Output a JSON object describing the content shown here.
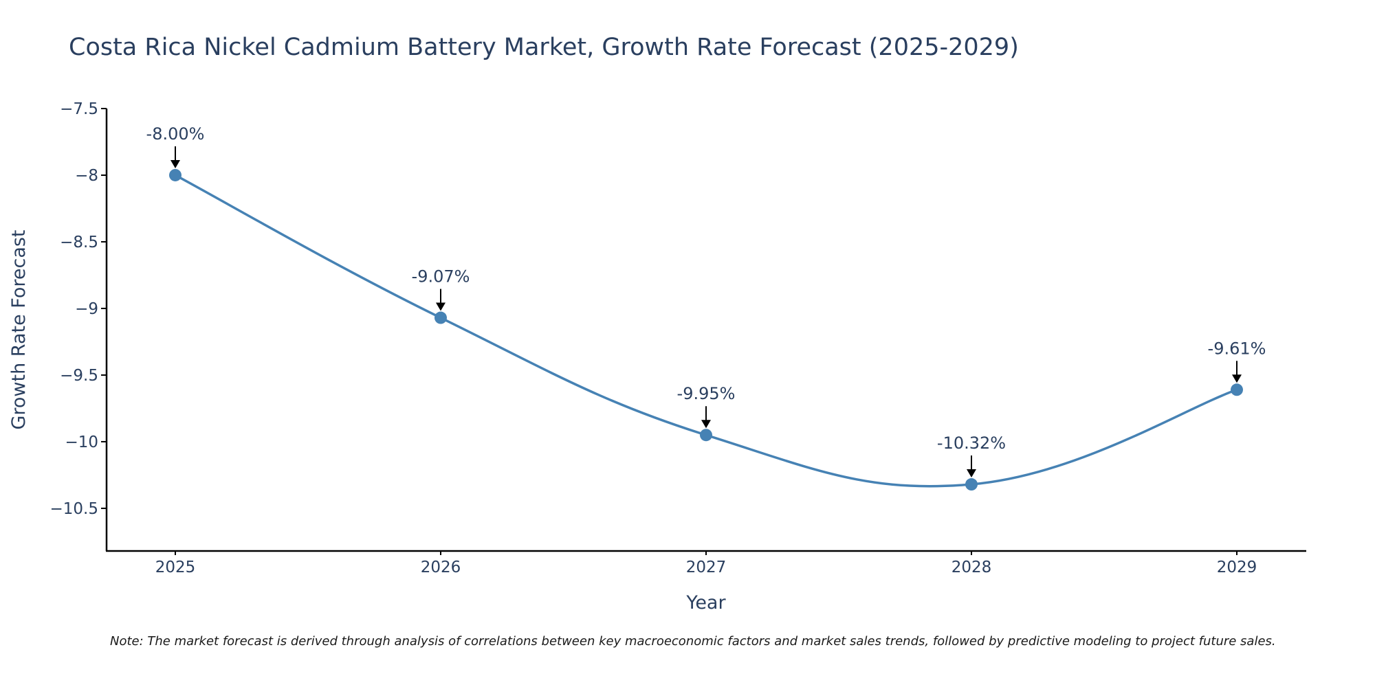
{
  "chart_data": {
    "type": "line",
    "title": "Costa Rica Nickel Cadmium Battery Market, Growth Rate Forecast (2025-2029)",
    "xlabel": "Year",
    "ylabel": "Growth Rate Forecast",
    "x": [
      "2025",
      "2026",
      "2027",
      "2028",
      "2029"
    ],
    "series": [
      {
        "name": "Growth Rate Forecast",
        "values": [
          -8.0,
          -9.07,
          -9.95,
          -10.32,
          -9.61
        ]
      }
    ],
    "annotations": [
      "-8.00%",
      "-9.07%",
      "-9.95%",
      "-10.32%",
      "-9.61%"
    ],
    "yticks": [
      -7.5,
      -8,
      -8.5,
      -9,
      -9.5,
      -10,
      -10.5
    ],
    "ytick_labels": [
      "−7.5",
      "−8",
      "−8.5",
      "−9",
      "−9.5",
      "−10",
      "−10.5"
    ],
    "ylim": [
      -10.82,
      -7.5
    ],
    "line_color": "#4682b4",
    "grid": false
  },
  "note": "Note: The market forecast is derived through analysis of correlations between key macroeconomic factors and market sales trends, followed by predictive modeling to project future sales."
}
